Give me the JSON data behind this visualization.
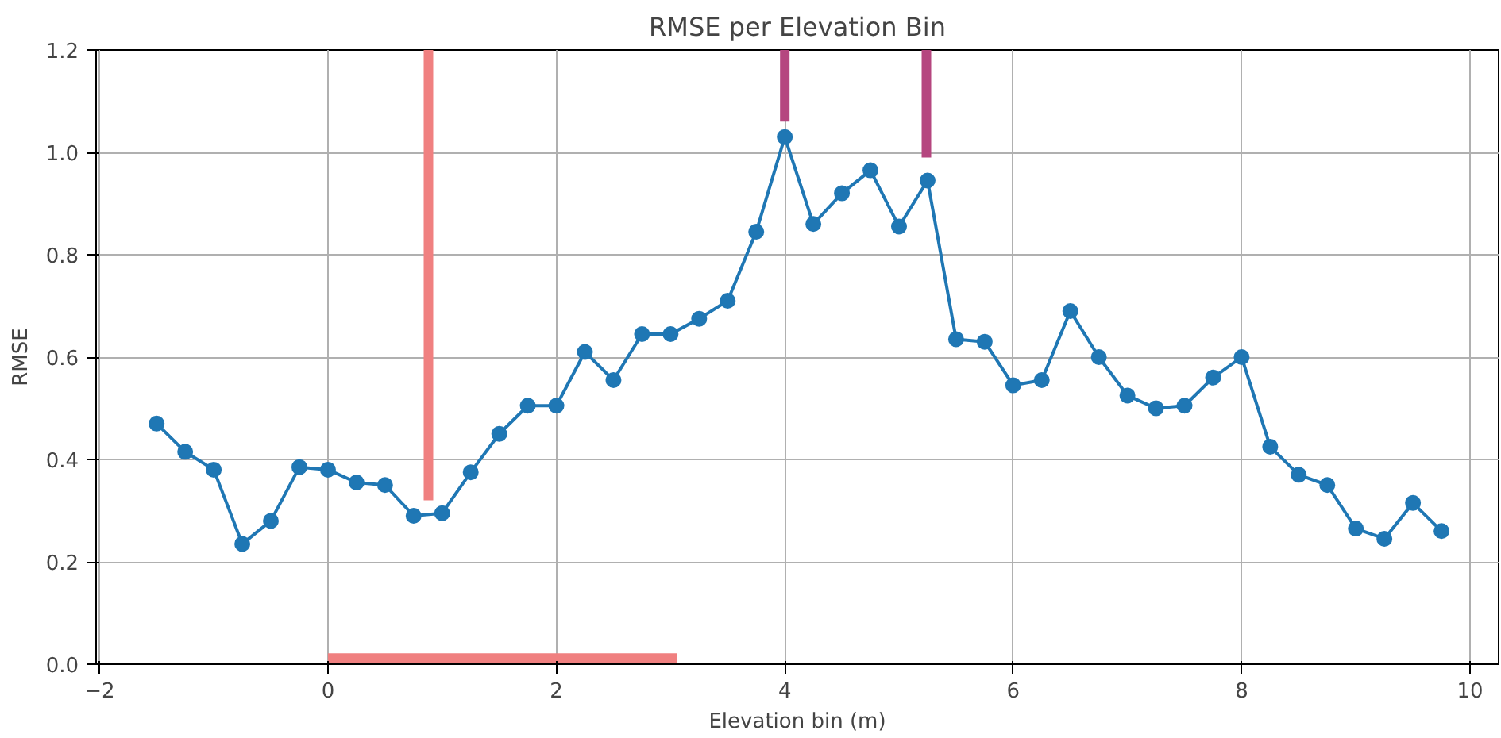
{
  "chart_data": {
    "type": "line",
    "title": "RMSE per Elevation Bin",
    "xlabel": "Elevation bin (m)",
    "ylabel": "RMSE",
    "xlim": [
      -2.03,
      10.25
    ],
    "ylim": [
      0,
      1.2
    ],
    "xticks": [
      {
        "value": -2,
        "label": "−2"
      },
      0,
      2,
      4,
      6,
      8,
      10
    ],
    "yticks": [
      {
        "value": 0,
        "label": "0.0"
      },
      0.2,
      0.4,
      0.6,
      0.8,
      {
        "value": 1,
        "label": "1.0"
      },
      1.2
    ],
    "grid": true,
    "marker": "circle",
    "line_style": "solid",
    "series": [
      {
        "color": "#1f77b4",
        "x": [
          -1.5,
          -1.25,
          -1.0,
          -0.75,
          -0.5,
          -0.25,
          0,
          0.25,
          0.5,
          0.75,
          1.0,
          1.25,
          1.5,
          1.75,
          2.0,
          2.25,
          2.5,
          2.75,
          3.0,
          3.25,
          3.5,
          3.75,
          4.0,
          4.25,
          4.5,
          4.75,
          5.0,
          5.25,
          5.5,
          5.75,
          6.0,
          6.25,
          6.5,
          6.75,
          7.0,
          7.25,
          7.5,
          7.75,
          8.0,
          8.25,
          8.5,
          8.75,
          9.0,
          9.25,
          9.5,
          9.75
        ],
        "values": [
          0.47,
          0.415,
          0.38,
          0.235,
          0.28,
          0.385,
          0.38,
          0.355,
          0.35,
          0.29,
          0.295,
          0.375,
          0.45,
          0.505,
          0.505,
          0.61,
          0.555,
          0.645,
          0.645,
          0.675,
          0.71,
          0.845,
          1.03,
          0.86,
          0.92,
          0.965,
          0.855,
          0.945,
          0.635,
          0.63,
          0.545,
          0.555,
          0.69,
          0.6,
          0.525,
          0.5,
          0.505,
          0.56,
          0.6,
          0.425,
          0.37,
          0.35,
          0.265,
          0.245,
          0.315,
          0.26
        ]
      },
      {
        "color": "#f08080",
        "marker": "none",
        "x": [
          0.88,
          0.88
        ],
        "values": [
          0.32,
          1.2
        ]
      },
      {
        "color": "#b5467f",
        "marker": "none",
        "x": [
          4.0,
          4.0
        ],
        "values": [
          1.06,
          1.2
        ]
      },
      {
        "color": "#b5467f",
        "marker": "none",
        "x": [
          5.24,
          5.24
        ],
        "values": [
          0.99,
          1.2
        ]
      },
      {
        "color": "#f08080",
        "marker": "none",
        "x": [
          0,
          3.06
        ],
        "values": [
          0.012,
          0.012
        ]
      }
    ]
  }
}
